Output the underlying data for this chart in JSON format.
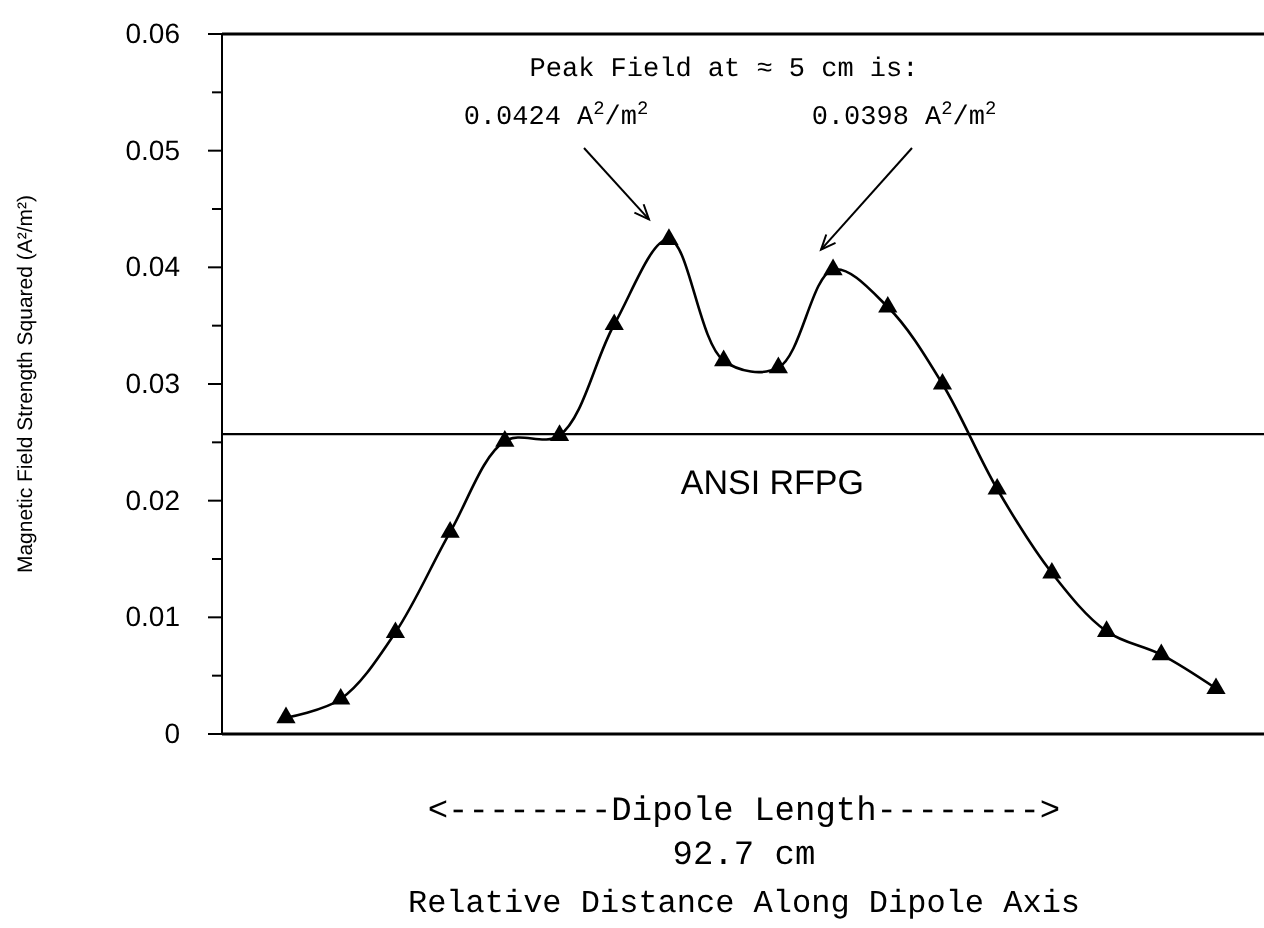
{
  "chart_data": {
    "type": "line",
    "ylabel": "Magnetic Field Strength Squared (A²/m²)",
    "xlabel": "Relative Distance Along Dipole Axis",
    "categories": [
      null,
      null,
      null,
      null,
      null,
      null,
      null,
      null,
      null,
      null,
      null,
      null,
      null,
      null,
      null,
      null,
      null,
      null
    ],
    "series": [
      {
        "color": "#000000",
        "values": [
          0.0014,
          0.003,
          0.0087,
          0.0173,
          0.0251,
          0.0256,
          0.0351,
          0.0424,
          0.032,
          0.0314,
          0.0398,
          0.0366,
          0.03,
          0.021,
          0.0138,
          0.0088,
          0.0068,
          0.0039
        ]
      }
    ],
    "ylim": [
      0,
      0.06
    ],
    "yticks": [
      0,
      {
        "value": 0.005,
        "label": null
      },
      0.01,
      {
        "value": 0.015,
        "label": null
      },
      0.02,
      {
        "value": 0.025,
        "label": null
      },
      0.03,
      {
        "value": 0.035,
        "label": null
      },
      0.04,
      {
        "value": 0.045,
        "label": null
      },
      0.05,
      {
        "value": 0.055,
        "label": null
      },
      0.06
    ],
    "marker": "triangle",
    "line_style": "solid",
    "grid": false,
    "ref_lines": [
      {
        "axis": "y",
        "value": 0.0257,
        "label": "ANSI RFPG"
      }
    ],
    "annotations": [
      "Peak Field at ≈ 5 cm is:",
      "0.0424 A$^{2}$/m$^{2}$",
      "0.0398 A$^{2}$/m$^{2}$",
      "<--------Dipole Length-------->",
      "92.7 cm"
    ]
  }
}
